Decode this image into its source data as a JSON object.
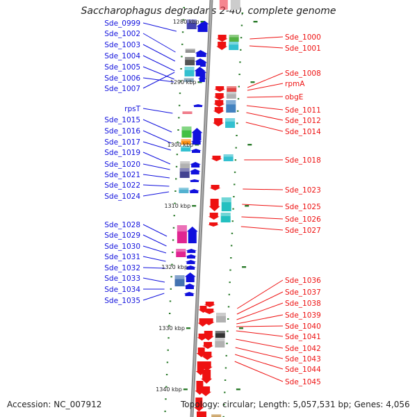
{
  "title": "Saccharophagus degradans 2-40, complete genome",
  "footer": {
    "accession": "Accession: NC_007912",
    "summary": "Topology: circular; Length: 5,057,531 bp; Genes: 4,056"
  },
  "ruler": [
    "1280 kbp",
    "1290 kbp",
    "1300 kbp",
    "1310 kbp",
    "1320 kbp",
    "1330 kbp",
    "1340 kbp"
  ],
  "genes_left": [
    "Sde_0999",
    "Sde_1002",
    "Sde_1003",
    "Sde_1004",
    "Sde_1005",
    "Sde_1006",
    "Sde_1007",
    "rpsT",
    "Sde_1015",
    "Sde_1016",
    "Sde_1017",
    "Sde_1019",
    "Sde_1020",
    "Sde_1021",
    "Sde_1022",
    "Sde_1024",
    "Sde_1028",
    "Sde_1029",
    "Sde_1030",
    "Sde_1031",
    "Sde_1032",
    "Sde_1033",
    "Sde_1034",
    "Sde_1035"
  ],
  "genes_right": [
    "Sde_1000",
    "Sde_1001",
    "Sde_1008",
    "rpmA",
    "obgE",
    "Sde_1011",
    "Sde_1012",
    "Sde_1014",
    "Sde_1018",
    "Sde_1023",
    "Sde_1025",
    "Sde_1026",
    "Sde_1027",
    "Sde_1036",
    "Sde_1037",
    "Sde_1038",
    "Sde_1039",
    "Sde_1040",
    "Sde_1041",
    "Sde_1042",
    "Sde_1043",
    "Sde_1044",
    "Sde_1045"
  ],
  "colors": {
    "forward": "#1010dd",
    "reverse": "#ee1111",
    "backbone": "#8a8a8a",
    "tick": "#2a7a2a"
  }
}
